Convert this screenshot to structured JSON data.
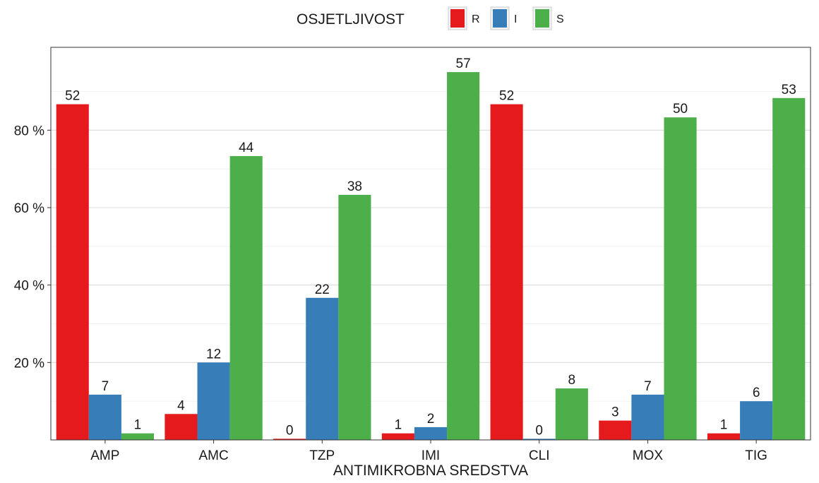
{
  "chart_data": {
    "type": "bar",
    "categories": [
      "AMP",
      "AMC",
      "TZP",
      "IMI",
      "CLI",
      "MOX",
      "TIG"
    ],
    "series": [
      {
        "name": "R",
        "color": "#e41a1c",
        "values": [
          86.7,
          6.7,
          0.3,
          1.7,
          86.7,
          5.0,
          1.7
        ],
        "labels": [
          "52",
          "4",
          "0",
          "1",
          "52",
          "3",
          "1"
        ]
      },
      {
        "name": "I",
        "color": "#377eb8",
        "values": [
          11.7,
          20.0,
          36.7,
          3.3,
          0.3,
          11.7,
          10.0
        ],
        "labels": [
          "7",
          "12",
          "22",
          "2",
          "0",
          "7",
          "6"
        ]
      },
      {
        "name": "S",
        "color": "#4daf4a",
        "values": [
          1.7,
          73.3,
          63.3,
          95.0,
          13.3,
          83.3,
          88.3
        ],
        "labels": [
          "1",
          "44",
          "38",
          "57",
          "8",
          "50",
          "53"
        ]
      }
    ],
    "xlabel": "ANTIMIKROBNA SREDSTVA",
    "ylabel": "",
    "ylim": [
      0,
      100
    ],
    "yticks": [
      {
        "value": 20,
        "label": "20 %"
      },
      {
        "value": 40,
        "label": "40 %"
      },
      {
        "value": 60,
        "label": "60 %"
      },
      {
        "value": 80,
        "label": "80 %"
      }
    ],
    "legend": {
      "title": "OSJETLJIVOST",
      "position": "top"
    },
    "grid": true
  }
}
